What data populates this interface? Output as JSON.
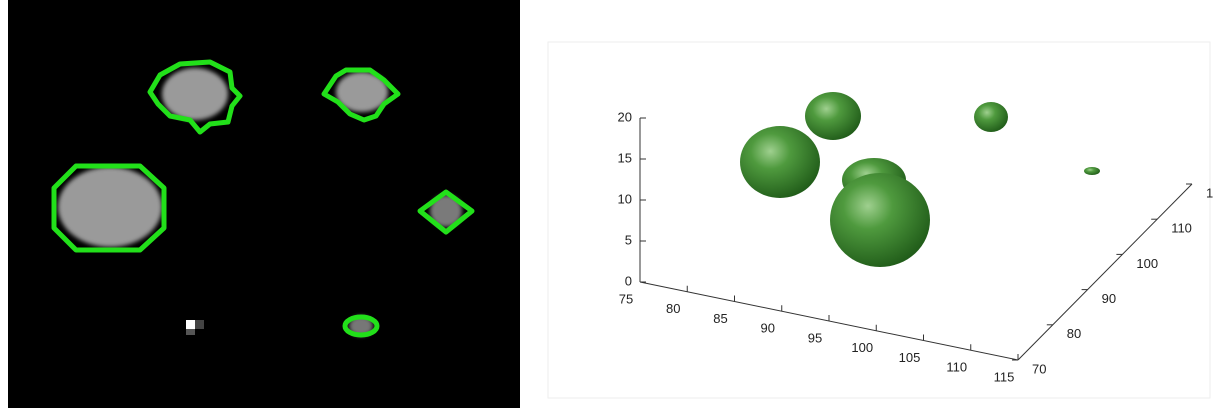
{
  "right_panel": {
    "z_ticks": [
      0,
      5,
      10,
      15,
      20
    ],
    "x_ticks": [
      75,
      80,
      85,
      90,
      95,
      100,
      105,
      110,
      115
    ],
    "y_ticks": [
      70,
      80,
      90,
      100,
      110,
      1
    ]
  }
}
